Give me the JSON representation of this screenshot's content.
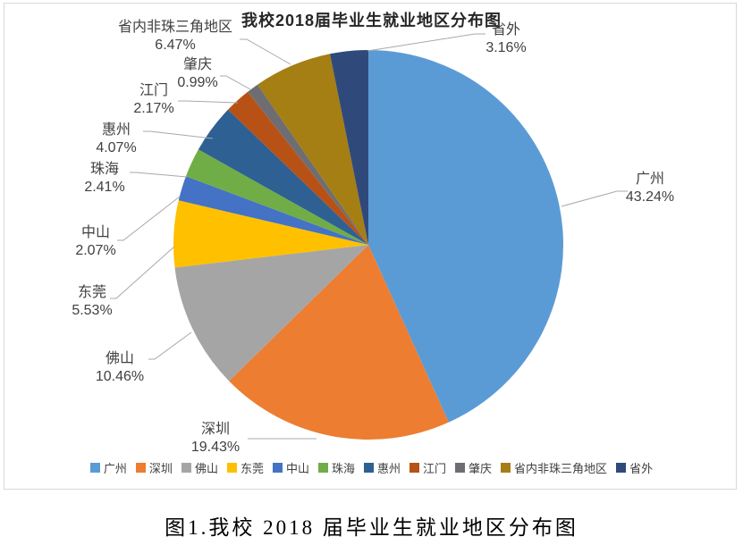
{
  "chart_data": {
    "type": "pie",
    "title": "我校2018届毕业生就业地区分布图",
    "categories": [
      "广州",
      "深圳",
      "佛山",
      "东莞",
      "中山",
      "珠海",
      "惠州",
      "江门",
      "肇庆",
      "省内非珠三角地区",
      "省外"
    ],
    "values": [
      43.24,
      19.43,
      10.46,
      5.53,
      2.07,
      2.41,
      4.07,
      2.17,
      0.99,
      6.47,
      3.16
    ],
    "unit": "%",
    "colors": [
      "#5B9BD5",
      "#ED7D31",
      "#A5A5A5",
      "#FFC000",
      "#4472C4",
      "#70AD47",
      "#2E6094",
      "#B85115",
      "#6E6E72",
      "#A57E14",
      "#2F4A7A"
    ],
    "start_angle_deg": 0,
    "direction": "clockwise",
    "data_label_format": "category + percent",
    "legend_position": "bottom",
    "leader_line_color": "#A8A8A8",
    "title_color": "#262626",
    "label_color": "#404040"
  },
  "caption": {
    "text": "图1.我校 2018 届毕业生就业地区分布图"
  }
}
